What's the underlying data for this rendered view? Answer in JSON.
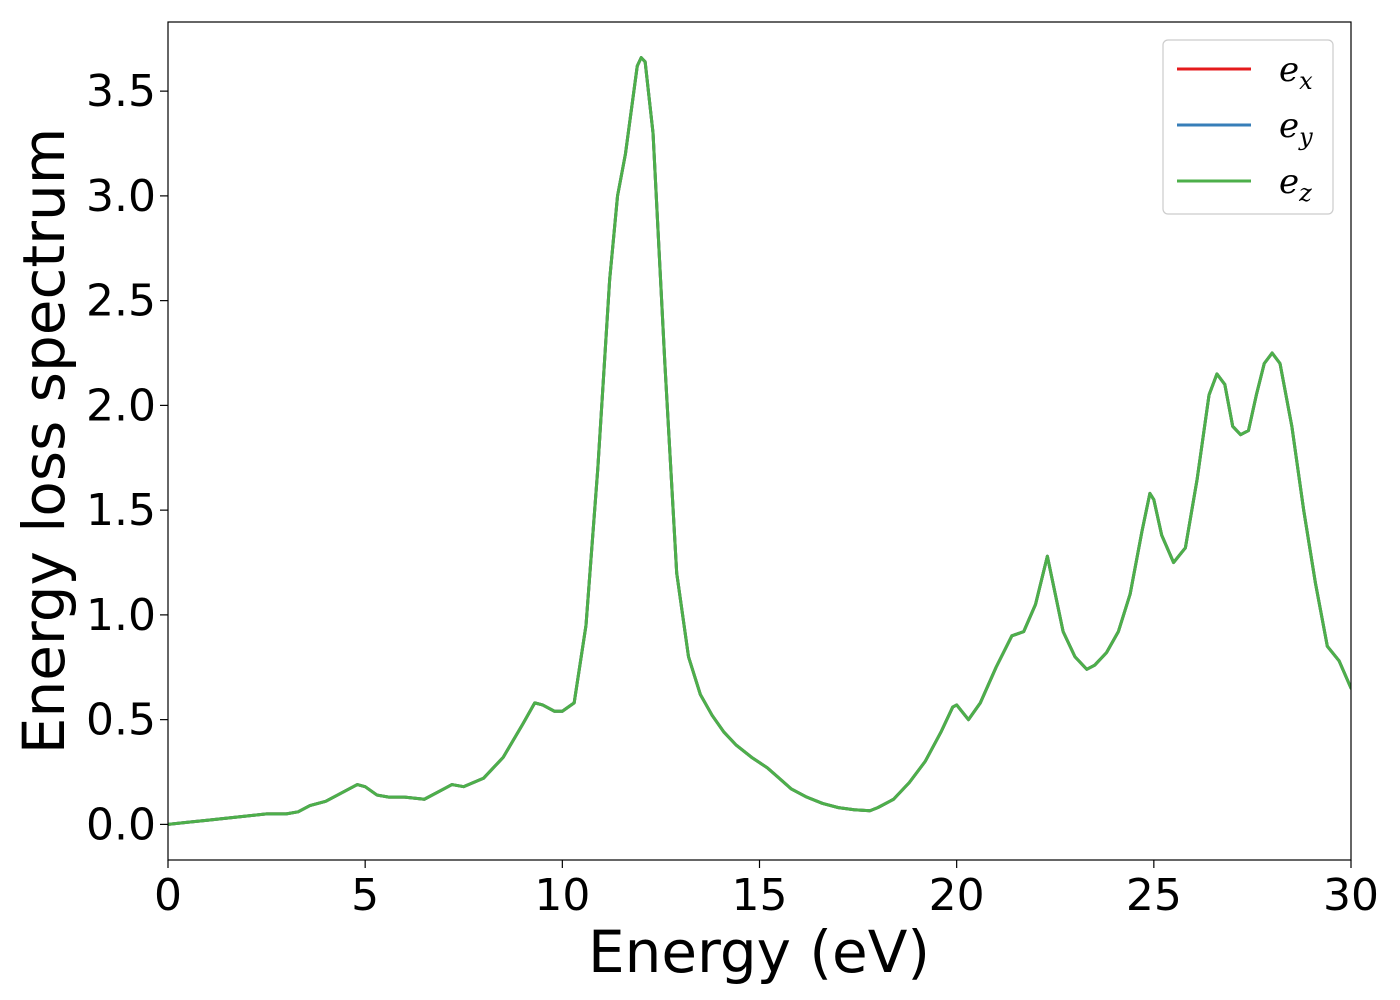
{
  "chart_data": {
    "type": "line",
    "xlabel": "Energy (eV)",
    "ylabel": "Energy loss spectrum",
    "xlim": [
      0,
      30
    ],
    "ylim": [
      -0.17,
      3.83
    ],
    "xticks": [
      0,
      5,
      10,
      15,
      20,
      25,
      30
    ],
    "xtick_labels": [
      "0",
      "5",
      "10",
      "15",
      "20",
      "25",
      "30"
    ],
    "yticks": [
      0.0,
      0.5,
      1.0,
      1.5,
      2.0,
      2.5,
      3.0,
      3.5
    ],
    "ytick_labels": [
      "0.0",
      "0.5",
      "1.0",
      "1.5",
      "2.0",
      "2.5",
      "3.0",
      "3.5"
    ],
    "grid": false,
    "legend_position": "top-right",
    "x": [
      0,
      0.5,
      1,
      1.5,
      2,
      2.5,
      3,
      3.3,
      3.6,
      4.0,
      4.4,
      4.8,
      5.0,
      5.3,
      5.6,
      6.0,
      6.5,
      7.0,
      7.2,
      7.5,
      8.0,
      8.5,
      9.0,
      9.3,
      9.5,
      9.8,
      10.0,
      10.3,
      10.6,
      10.9,
      11.2,
      11.4,
      11.6,
      11.9,
      12.0,
      12.1,
      12.3,
      12.6,
      12.9,
      13.2,
      13.5,
      13.8,
      14.1,
      14.4,
      14.8,
      15.2,
      15.5,
      15.8,
      16.2,
      16.6,
      17.0,
      17.4,
      17.8,
      18.0,
      18.4,
      18.8,
      19.2,
      19.6,
      19.9,
      20.0,
      20.3,
      20.6,
      21.0,
      21.4,
      21.7,
      22.0,
      22.3,
      22.5,
      22.7,
      23.0,
      23.3,
      23.5,
      23.8,
      24.1,
      24.4,
      24.7,
      24.9,
      25.0,
      25.2,
      25.5,
      25.8,
      26.1,
      26.4,
      26.6,
      26.8,
      27.0,
      27.2,
      27.4,
      27.6,
      27.8,
      28.0,
      28.2,
      28.5,
      28.8,
      29.1,
      29.4,
      29.7,
      30.0
    ],
    "series": [
      {
        "name": "e_x",
        "label_base": "e",
        "label_sub": "x",
        "color": "#e41a1c",
        "y": [
          0.0,
          0.01,
          0.02,
          0.03,
          0.04,
          0.05,
          0.05,
          0.06,
          0.09,
          0.11,
          0.15,
          0.19,
          0.18,
          0.14,
          0.13,
          0.13,
          0.12,
          0.17,
          0.19,
          0.18,
          0.22,
          0.32,
          0.48,
          0.58,
          0.57,
          0.54,
          0.54,
          0.58,
          0.95,
          1.7,
          2.6,
          3.0,
          3.2,
          3.62,
          3.66,
          3.64,
          3.3,
          2.2,
          1.2,
          0.8,
          0.62,
          0.52,
          0.44,
          0.38,
          0.32,
          0.27,
          0.22,
          0.17,
          0.13,
          0.1,
          0.08,
          0.07,
          0.065,
          0.08,
          0.12,
          0.2,
          0.3,
          0.44,
          0.56,
          0.57,
          0.5,
          0.58,
          0.75,
          0.9,
          0.92,
          1.05,
          1.28,
          1.1,
          0.92,
          0.8,
          0.74,
          0.76,
          0.82,
          0.92,
          1.1,
          1.4,
          1.58,
          1.55,
          1.38,
          1.25,
          1.32,
          1.65,
          2.05,
          2.15,
          2.1,
          1.9,
          1.86,
          1.88,
          2.05,
          2.2,
          2.25,
          2.2,
          1.9,
          1.5,
          1.15,
          0.85,
          0.78,
          0.65
        ]
      },
      {
        "name": "e_y",
        "label_base": "e",
        "label_sub": "y",
        "color": "#377eb8",
        "y": [
          0.0,
          0.01,
          0.02,
          0.03,
          0.04,
          0.05,
          0.05,
          0.06,
          0.09,
          0.11,
          0.15,
          0.19,
          0.18,
          0.14,
          0.13,
          0.13,
          0.12,
          0.17,
          0.19,
          0.18,
          0.22,
          0.32,
          0.48,
          0.58,
          0.57,
          0.54,
          0.54,
          0.58,
          0.95,
          1.7,
          2.6,
          3.0,
          3.2,
          3.62,
          3.66,
          3.64,
          3.3,
          2.2,
          1.2,
          0.8,
          0.62,
          0.52,
          0.44,
          0.38,
          0.32,
          0.27,
          0.22,
          0.17,
          0.13,
          0.1,
          0.08,
          0.07,
          0.065,
          0.08,
          0.12,
          0.2,
          0.3,
          0.44,
          0.56,
          0.57,
          0.5,
          0.58,
          0.75,
          0.9,
          0.92,
          1.05,
          1.28,
          1.1,
          0.92,
          0.8,
          0.74,
          0.76,
          0.82,
          0.92,
          1.1,
          1.4,
          1.58,
          1.55,
          1.38,
          1.25,
          1.32,
          1.65,
          2.05,
          2.15,
          2.1,
          1.9,
          1.86,
          1.88,
          2.05,
          2.2,
          2.25,
          2.2,
          1.9,
          1.5,
          1.15,
          0.85,
          0.78,
          0.65
        ]
      },
      {
        "name": "e_z",
        "label_base": "e",
        "label_sub": "z",
        "color": "#4daf4a",
        "y": [
          0.0,
          0.01,
          0.02,
          0.03,
          0.04,
          0.05,
          0.05,
          0.06,
          0.09,
          0.11,
          0.15,
          0.19,
          0.18,
          0.14,
          0.13,
          0.13,
          0.12,
          0.17,
          0.19,
          0.18,
          0.22,
          0.32,
          0.48,
          0.58,
          0.57,
          0.54,
          0.54,
          0.58,
          0.95,
          1.7,
          2.6,
          3.0,
          3.2,
          3.62,
          3.66,
          3.64,
          3.3,
          2.2,
          1.2,
          0.8,
          0.62,
          0.52,
          0.44,
          0.38,
          0.32,
          0.27,
          0.22,
          0.17,
          0.13,
          0.1,
          0.08,
          0.07,
          0.065,
          0.08,
          0.12,
          0.2,
          0.3,
          0.44,
          0.56,
          0.57,
          0.5,
          0.58,
          0.75,
          0.9,
          0.92,
          1.05,
          1.28,
          1.1,
          0.92,
          0.8,
          0.74,
          0.76,
          0.82,
          0.92,
          1.1,
          1.4,
          1.58,
          1.55,
          1.38,
          1.25,
          1.32,
          1.65,
          2.05,
          2.15,
          2.1,
          1.9,
          1.86,
          1.88,
          2.05,
          2.2,
          2.25,
          2.2,
          1.9,
          1.5,
          1.15,
          0.85,
          0.78,
          0.65
        ]
      }
    ]
  }
}
